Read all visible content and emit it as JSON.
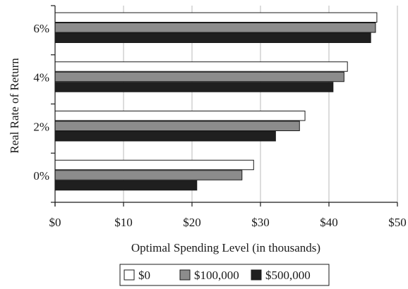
{
  "chart_data": {
    "type": "bar",
    "orientation": "horizontal",
    "categories": [
      "0%",
      "2%",
      "4%",
      "6%"
    ],
    "series": [
      {
        "name": "$0",
        "color": "#ffffff",
        "values": [
          29.0,
          36.5,
          42.7,
          47.0
        ]
      },
      {
        "name": "$100,000",
        "color": "#8c8c8c",
        "values": [
          27.3,
          35.7,
          42.2,
          46.8
        ]
      },
      {
        "name": "$500,000",
        "color": "#1f1f1f",
        "values": [
          20.7,
          32.2,
          40.6,
          46.1
        ]
      }
    ],
    "xlabel": "Optimal Spending Level (in thousands)",
    "ylabel": "Real Rate of Return",
    "xlim": [
      0,
      50
    ],
    "xticks": [
      "$0",
      "$10",
      "$20",
      "$30",
      "$40",
      "$50"
    ],
    "grid": "vertical",
    "legend_position": "bottom"
  }
}
